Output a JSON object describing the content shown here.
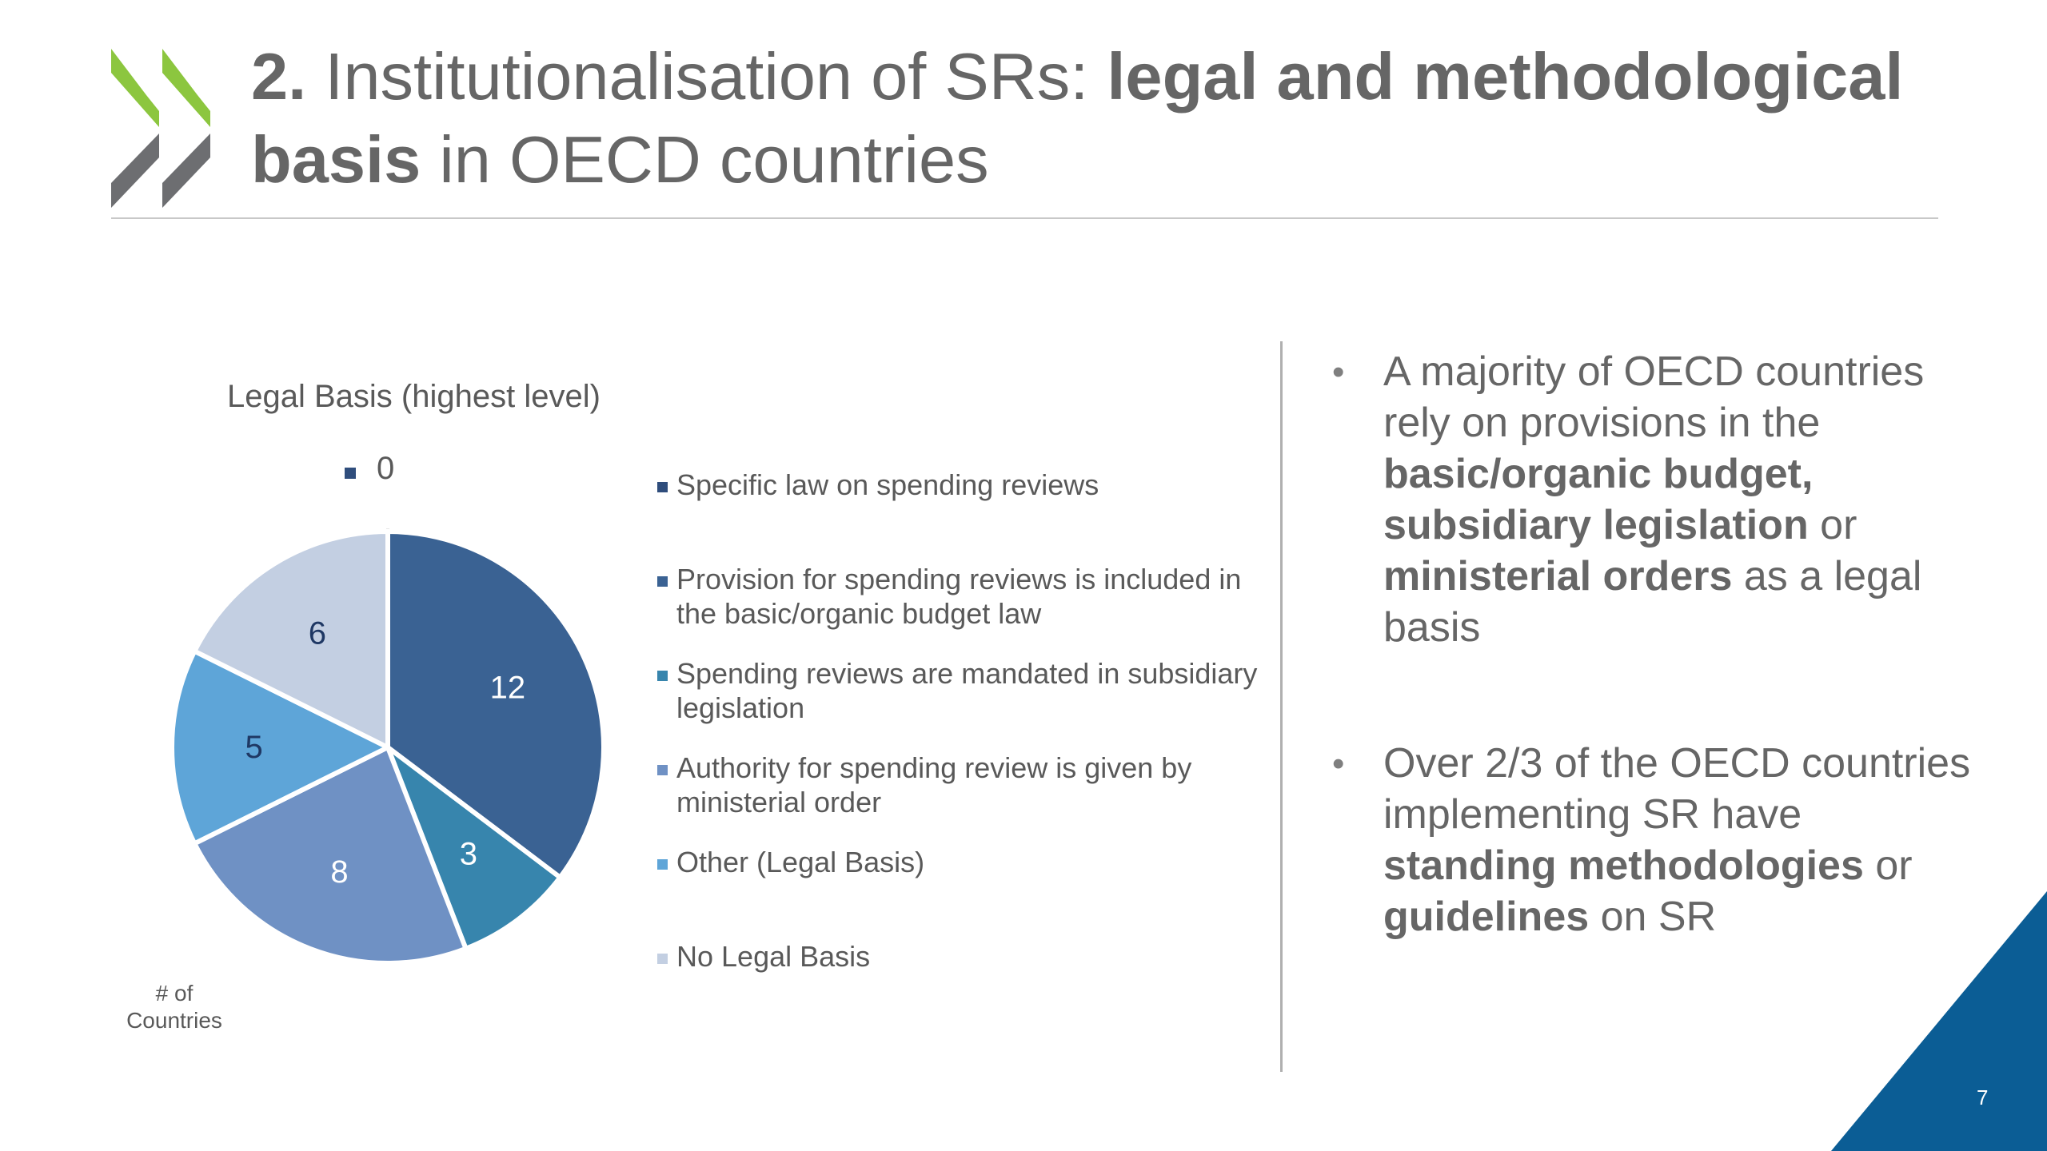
{
  "title": {
    "number": "2.",
    "normal1": "Institutionalisation of SRs:",
    "bold1": "legal and methodological",
    "bold2": "basis",
    "normal2": "in OECD countries"
  },
  "chart_data": {
    "type": "pie",
    "title": "Legal Basis (highest level)",
    "categories": [
      "Specific law on spending reviews",
      "Provision for spending reviews is included in the basic/organic budget law",
      "Spending reviews are mandated in subsidiary legislation",
      "Authority for spending review is given by ministerial order",
      "Other (Legal Basis)",
      "No Legal Basis"
    ],
    "values": [
      0,
      12,
      3,
      8,
      5,
      6
    ],
    "colors": [
      "#2f4d7c",
      "#3a6293",
      "#3785ad",
      "#6f91c4",
      "#5ea5d8",
      "#c3cfe2"
    ],
    "value_label_colors": [
      "#595959",
      "#ffffff",
      "#ffffff",
      "#ffffff",
      "#1f3864",
      "#1f3864"
    ],
    "legend_position": "right",
    "unit_note": "# of Countries"
  },
  "bullets": [
    {
      "parts": [
        {
          "t": "A majority of OECD countries rely on provisions in the "
        },
        {
          "t": "basic/organic budget, subsidiary legislation",
          "b": true
        },
        {
          "t": " or "
        },
        {
          "t": "ministerial orders",
          "b": true
        },
        {
          "t": " as a legal basis"
        }
      ]
    },
    {
      "parts": [
        {
          "t": "Over 2/3 of the OECD countries implementing SR have "
        },
        {
          "t": "standing methodologies",
          "b": true
        },
        {
          "t": " or "
        },
        {
          "t": "guidelines",
          "b": true
        },
        {
          "t": " on SR"
        }
      ]
    }
  ],
  "bullet_symbol": "•",
  "page_number": "7",
  "colors": {
    "logo_green": "#8cc63f",
    "logo_grey": "#6d6e71",
    "corner_blue": "#0b5d95"
  }
}
